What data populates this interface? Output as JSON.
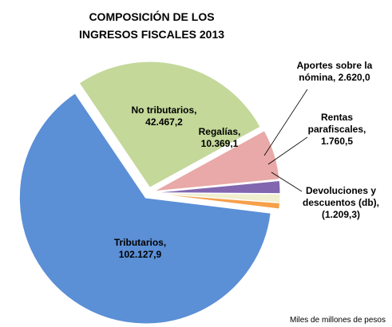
{
  "chart_data": {
    "type": "pie",
    "title": "COMPOSICIÓN DE LOS INGRESOS FISCALES 2013",
    "note": "Miles de millones de pesos",
    "categories": [
      "Tributarios,",
      "No tributarios,",
      "Regalías,",
      "Aportes sobre la nómina,",
      "Rentas parafiscales,",
      "Devoluciones y descuentos (db),"
    ],
    "values": [
      102127.9,
      42467.2,
      10369.1,
      2620.0,
      1760.5,
      -1209.3
    ],
    "value_labels": [
      "102.127,9",
      "42.467,2",
      "10.369,1",
      "2.620,0",
      "1.760,5",
      "(1.209,3)"
    ],
    "colors": [
      "#5b8fd6",
      "#c4d89a",
      "#e8a9a8",
      "#8266b0",
      "#f0efcf",
      "#f5a04a"
    ]
  }
}
